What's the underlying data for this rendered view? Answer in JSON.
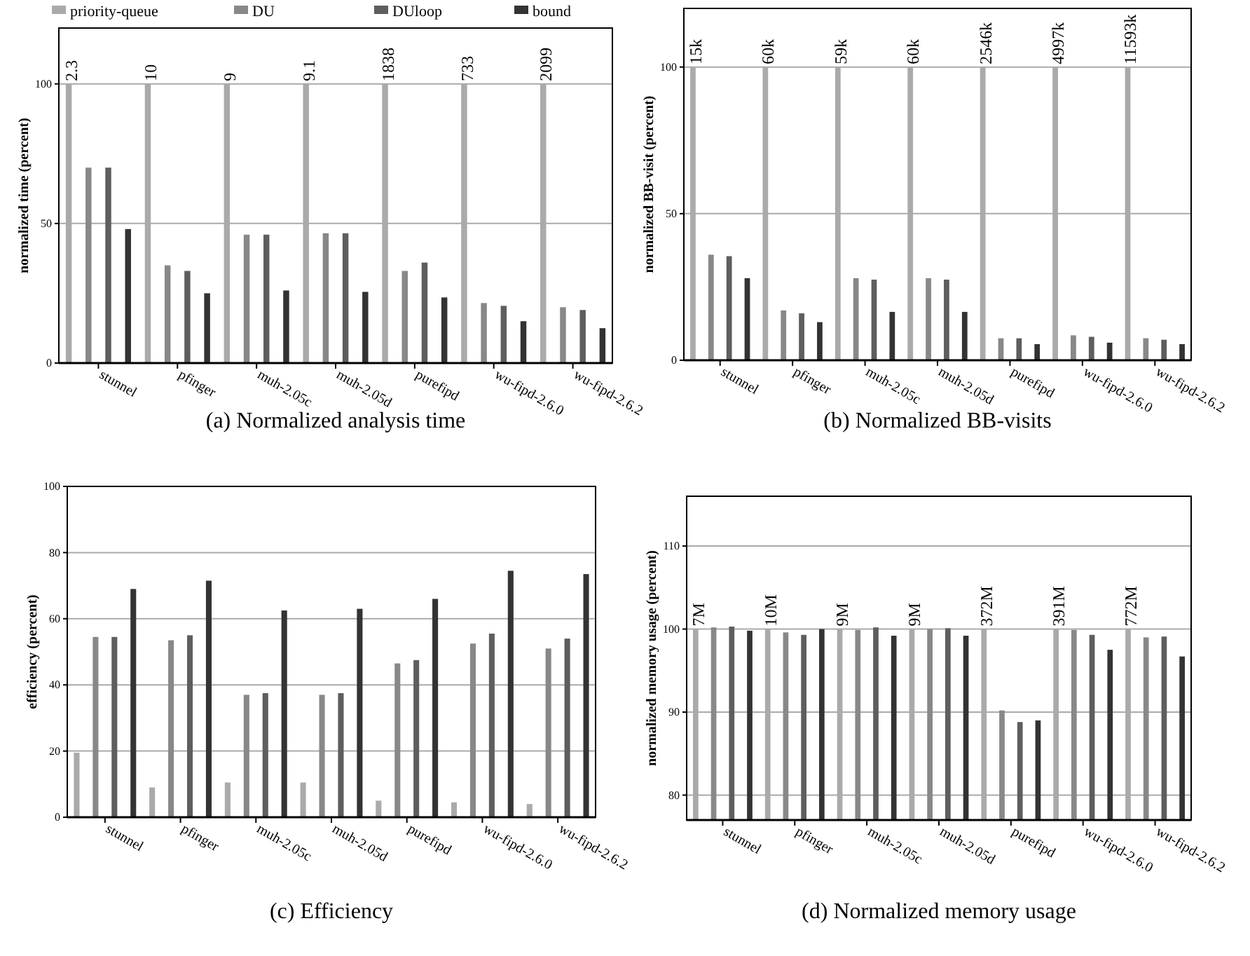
{
  "chart_data": [
    {
      "type": "bar",
      "title": "(a) Normalized analysis time",
      "ylabel": "normalized time (percent)",
      "categories": [
        "stunnel",
        "pfinger",
        "muh-2.05c",
        "muh-2.05d",
        "purefipd",
        "wu-fipd-2.6.0",
        "wu-fipd-2.6.2"
      ],
      "ylim": [
        0,
        120
      ],
      "yticks": [
        0,
        50,
        100
      ],
      "grid": "y",
      "legend": "top",
      "series": [
        {
          "name": "priority-queue",
          "color": "#aaaaaa",
          "values": [
            100,
            100,
            100,
            100,
            100,
            100,
            100
          ]
        },
        {
          "name": "DU",
          "color": "#888888",
          "values": [
            70,
            35,
            46,
            46.5,
            33,
            21.5,
            20
          ]
        },
        {
          "name": "DUloop",
          "color": "#5e5e5e",
          "values": [
            70,
            33,
            46,
            46.5,
            36,
            20.5,
            19
          ]
        },
        {
          "name": "bound",
          "color": "#333333",
          "values": [
            48,
            25,
            26,
            25.5,
            23.5,
            15,
            12.5
          ]
        }
      ],
      "annotations": [
        "2.3",
        "10",
        "9",
        "9.1",
        "1838",
        "733",
        "2099"
      ]
    },
    {
      "type": "bar",
      "title": "(b) Normalized BB-visits",
      "ylabel": "normalized BB-visit (percent)",
      "categories": [
        "stunnel",
        "pfinger",
        "muh-2.05c",
        "muh-2.05d",
        "purefipd",
        "wu-fipd-2.6.0",
        "wu-fipd-2.6.2"
      ],
      "ylim": [
        0,
        120
      ],
      "yticks": [
        0,
        50,
        100
      ],
      "grid": "y",
      "series": [
        {
          "color": "#aaaaaa",
          "values": [
            100,
            100,
            100,
            100,
            100,
            100,
            100
          ]
        },
        {
          "color": "#888888",
          "values": [
            36,
            17,
            28,
            28,
            7.5,
            8.5,
            7.5
          ]
        },
        {
          "color": "#5e5e5e",
          "values": [
            35.5,
            16,
            27.5,
            27.5,
            7.5,
            8,
            7
          ]
        },
        {
          "color": "#333333",
          "values": [
            28,
            13,
            16.5,
            16.5,
            5.5,
            6,
            5.5
          ]
        }
      ],
      "annotations": [
        "15k",
        "60k",
        "59k",
        "60k",
        "2546k",
        "4997k",
        "11593k"
      ]
    },
    {
      "type": "bar",
      "title": "(c) Efficiency",
      "ylabel": "efficiency (percent)",
      "categories": [
        "stunnel",
        "pfinger",
        "muh-2.05c",
        "muh-2.05d",
        "purefipd",
        "wu-fipd-2.6.0",
        "wu-fipd-2.6.2"
      ],
      "ylim": [
        0,
        100
      ],
      "yticks": [
        0,
        20,
        40,
        60,
        80,
        100
      ],
      "grid": "y",
      "series": [
        {
          "color": "#aaaaaa",
          "values": [
            19.5,
            9,
            10.5,
            10.5,
            5,
            4.5,
            4
          ]
        },
        {
          "color": "#888888",
          "values": [
            54.5,
            53.5,
            37,
            37,
            46.5,
            52.5,
            51
          ]
        },
        {
          "color": "#5e5e5e",
          "values": [
            54.5,
            55,
            37.5,
            37.5,
            47.5,
            55.5,
            54
          ]
        },
        {
          "color": "#333333",
          "values": [
            69,
            71.5,
            62.5,
            63,
            66,
            74.5,
            73.5
          ]
        }
      ]
    },
    {
      "type": "bar",
      "title": "(d) Normalized memory usage",
      "ylabel": "normalized memory usage (percent)",
      "categories": [
        "stunnel",
        "pfinger",
        "muh-2.05c",
        "muh-2.05d",
        "purefipd",
        "wu-fipd-2.6.0",
        "wu-fipd-2.6.2"
      ],
      "ylim": [
        77,
        116
      ],
      "yticks": [
        80,
        90,
        100,
        110
      ],
      "grid": "y",
      "series": [
        {
          "color": "#aaaaaa",
          "values": [
            100,
            100,
            100,
            100,
            100,
            100,
            100
          ]
        },
        {
          "color": "#888888",
          "values": [
            100.2,
            99.6,
            99.9,
            100,
            90.2,
            99.9,
            99
          ]
        },
        {
          "color": "#5e5e5e",
          "values": [
            100.3,
            99.3,
            100.2,
            100.1,
            88.8,
            99.3,
            99.1
          ]
        },
        {
          "color": "#333333",
          "values": [
            99.8,
            100,
            99.2,
            99.2,
            89,
            97.5,
            96.7
          ]
        }
      ],
      "annotations": [
        "7M",
        "10M",
        "9M",
        "9M",
        "372M",
        "391M",
        "772M"
      ]
    }
  ]
}
